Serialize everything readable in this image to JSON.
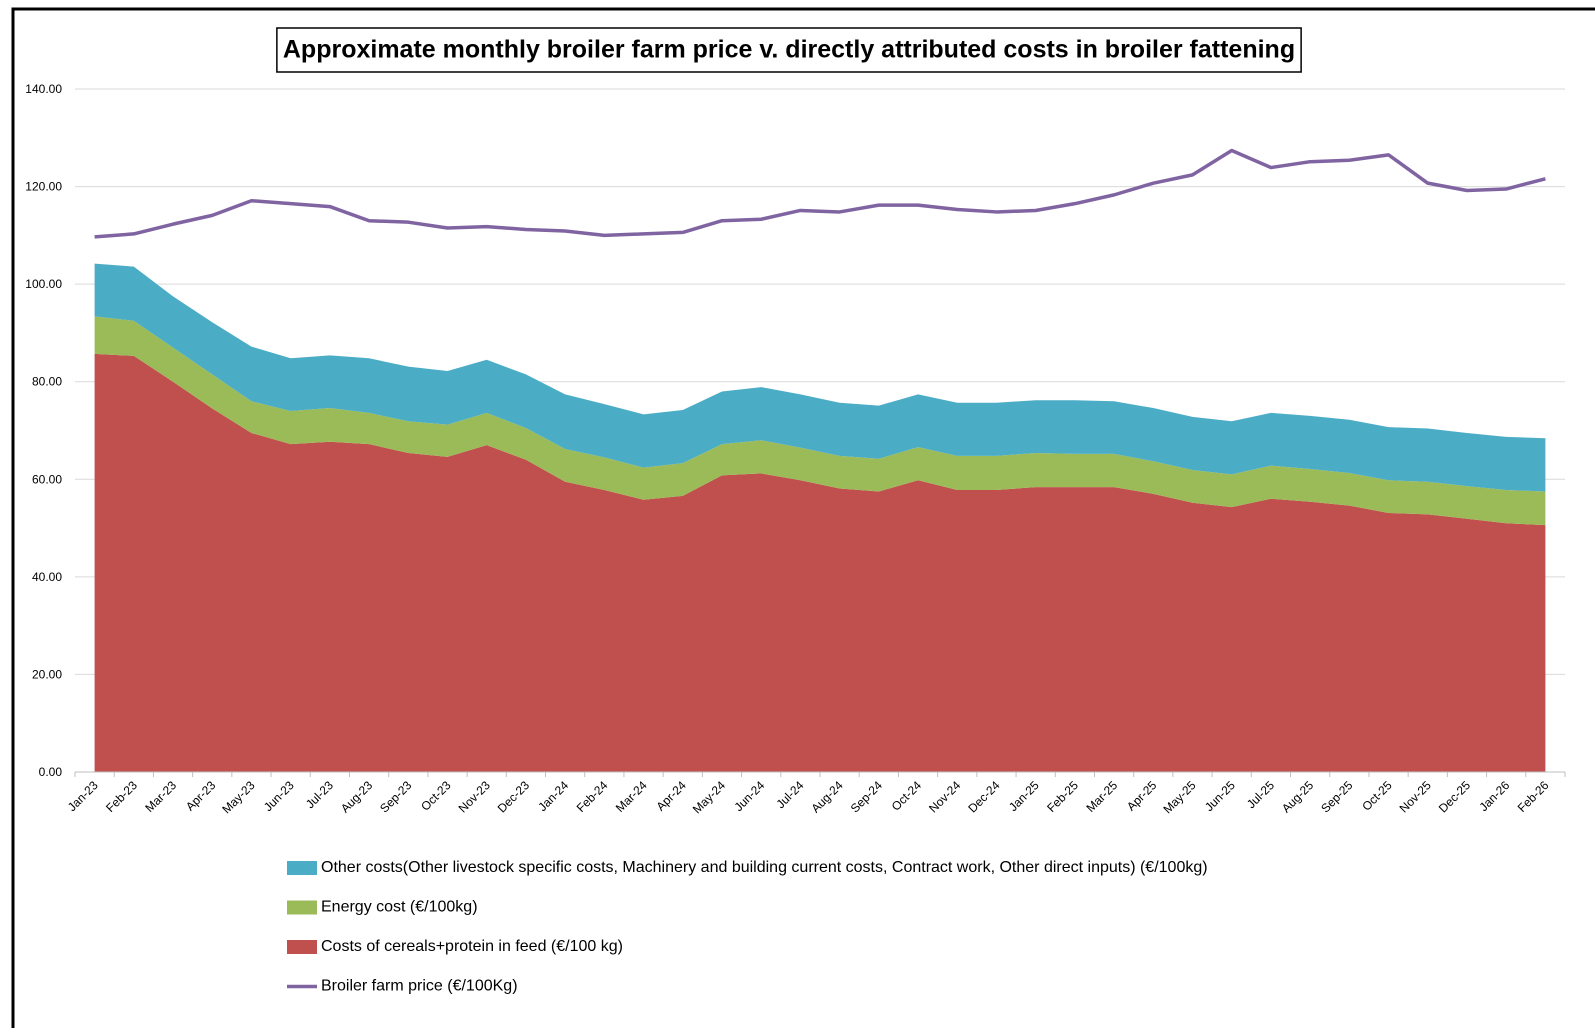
{
  "chart_data": {
    "type": "stacked-area-line",
    "title": "Approximate monthly broiler farm price v. directly attributed costs in broiler fattening",
    "categories": [
      "Jan-23",
      "Feb-23",
      "Mar-23",
      "Apr-23",
      "May-23",
      "Jun-23",
      "Jul-23",
      "Aug-23",
      "Sep-23",
      "Oct-23",
      "Nov-23",
      "Dec-23",
      "Jan-24",
      "Feb-24",
      "Mar-24",
      "Apr-24",
      "May-24",
      "Jun-24",
      "Jul-24",
      "Aug-24",
      "Sep-24",
      "Oct-24",
      "Nov-24",
      "Dec-24",
      "Jan-25",
      "Feb-25",
      "Mar-25",
      "Apr-25",
      "May-25",
      "Jun-25",
      "Jul-25",
      "Aug-25",
      "Sep-25",
      "Oct-25",
      "Nov-25",
      "Dec-25",
      "Jan-26",
      "Feb-26"
    ],
    "series": [
      {
        "name": "Other costs(Other livestock specific costs, Machinery and building current costs, Contract work, Other direct inputs) (€/100kg)",
        "color": "#4bacc6",
        "kind": "area",
        "values": [
          10.8,
          11.1,
          10.5,
          10.7,
          11.2,
          10.8,
          10.8,
          11.2,
          11.2,
          11.0,
          10.9,
          11.0,
          11.2,
          10.9,
          10.9,
          10.9,
          10.8,
          10.9,
          10.9,
          10.9,
          10.9,
          10.8,
          10.9,
          10.9,
          10.8,
          11.0,
          10.8,
          10.9,
          10.9,
          10.9,
          10.8,
          10.9,
          10.9,
          10.9,
          10.9,
          10.9,
          10.9,
          10.9
        ]
      },
      {
        "name": "Energy cost (€/100kg)",
        "color": "#9bbb59",
        "kind": "area",
        "values": [
          7.7,
          7.2,
          7.0,
          7.0,
          6.5,
          6.8,
          6.9,
          6.4,
          6.5,
          6.6,
          6.6,
          6.5,
          6.7,
          6.7,
          6.6,
          6.7,
          6.4,
          6.8,
          6.7,
          6.7,
          6.7,
          6.8,
          7.0,
          7.0,
          7.0,
          6.8,
          6.8,
          6.7,
          6.7,
          6.7,
          6.8,
          6.7,
          6.7,
          6.7,
          6.7,
          6.7,
          6.8,
          6.9
        ]
      },
      {
        "name": "Costs of cereals+protein in feed (€/100 kg)",
        "color": "#c0504d",
        "kind": "area",
        "values": [
          85.7,
          85.3,
          80.0,
          74.5,
          69.5,
          67.2,
          67.7,
          67.2,
          65.4,
          64.6,
          67.0,
          64.0,
          59.5,
          57.8,
          55.8,
          56.6,
          60.8,
          61.2,
          59.8,
          58.1,
          57.5,
          59.8,
          57.8,
          57.8,
          58.4,
          58.4,
          58.4,
          57.0,
          55.2,
          54.3,
          56.0,
          55.4,
          54.6,
          53.1,
          52.8,
          51.9,
          51.0,
          50.6
        ]
      },
      {
        "name": "Broiler farm price (€/100Kg)",
        "color": "#8064a2",
        "kind": "line",
        "values": [
          109.7,
          110.3,
          112.3,
          114.1,
          117.1,
          116.5,
          115.9,
          113.0,
          112.7,
          111.5,
          111.8,
          111.2,
          110.9,
          110.0,
          110.3,
          110.6,
          113.0,
          113.3,
          115.1,
          114.8,
          116.2,
          116.2,
          115.3,
          114.8,
          115.1,
          116.5,
          118.3,
          120.7,
          122.4,
          127.4,
          123.9,
          125.1,
          125.4,
          126.5,
          120.7,
          119.2,
          119.5,
          121.6
        ]
      }
    ],
    "ylim": [
      0,
      140
    ],
    "yticks": [
      {
        "value": 0,
        "label": "0.00"
      },
      {
        "value": 20,
        "label": "20.00"
      },
      {
        "value": 40,
        "label": "40.00"
      },
      {
        "value": 60,
        "label": "60.00"
      },
      {
        "value": 80,
        "label": "80.00"
      },
      {
        "value": 100,
        "label": "100.00"
      },
      {
        "value": 120,
        "label": "120.00"
      },
      {
        "value": 140,
        "label": "140.00"
      }
    ],
    "grid": true,
    "legend": "bottom"
  }
}
